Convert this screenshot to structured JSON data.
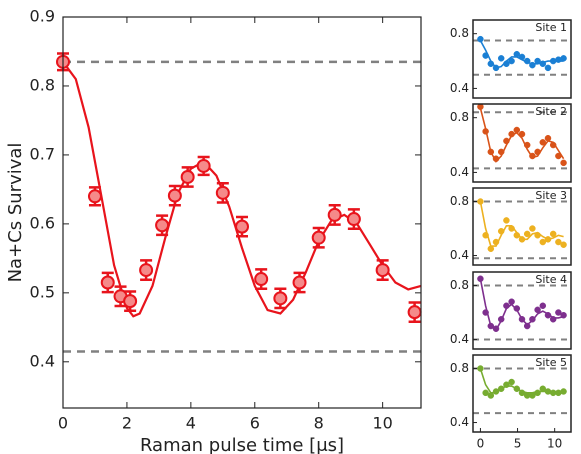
{
  "chart_data": [
    {
      "type": "errorbar",
      "xlabel": "Raman pulse time [μs]",
      "ylabel": "Na+Cs Survival",
      "color": "#e8141c",
      "marker_fill": "#f58a8a",
      "xlim": [
        0,
        11.2
      ],
      "ylim": [
        0.333,
        0.9
      ],
      "xticks": [
        0,
        2,
        4,
        6,
        8,
        10
      ],
      "yticks": [
        0.4,
        0.5,
        0.6,
        0.7,
        0.8,
        0.9
      ],
      "reference_lines": [
        0.835,
        0.415
      ],
      "x": [
        0,
        1,
        1.4,
        1.8,
        2.1,
        2.6,
        3.1,
        3.5,
        3.9,
        4.4,
        5.0,
        5.6,
        6.2,
        6.8,
        7.4,
        8.0,
        8.5,
        9.1,
        10.0,
        11.0
      ],
      "values": [
        0.835,
        0.64,
        0.515,
        0.495,
        0.488,
        0.533,
        0.598,
        0.641,
        0.668,
        0.684,
        0.645,
        0.596,
        0.52,
        0.492,
        0.515,
        0.58,
        0.613,
        0.607,
        0.533,
        0.472
      ],
      "errors": [
        0.012,
        0.013,
        0.014,
        0.014,
        0.014,
        0.014,
        0.014,
        0.014,
        0.014,
        0.013,
        0.014,
        0.014,
        0.014,
        0.014,
        0.014,
        0.014,
        0.014,
        0.014,
        0.014,
        0.014
      ],
      "fit_x": [
        0,
        0.4,
        0.8,
        1.2,
        1.6,
        2.0,
        2.2,
        2.4,
        2.8,
        3.2,
        3.6,
        4.0,
        4.4,
        4.8,
        5.2,
        5.6,
        6.0,
        6.4,
        6.8,
        7.2,
        7.6,
        8.0,
        8.4,
        8.8,
        9.2,
        9.6,
        10.0,
        10.4,
        10.8,
        11.2
      ],
      "fit_values": [
        0.835,
        0.81,
        0.74,
        0.64,
        0.54,
        0.478,
        0.466,
        0.47,
        0.51,
        0.58,
        0.645,
        0.68,
        0.69,
        0.67,
        0.625,
        0.565,
        0.51,
        0.475,
        0.47,
        0.49,
        0.53,
        0.575,
        0.605,
        0.613,
        0.6,
        0.57,
        0.54,
        0.515,
        0.505,
        0.51
      ]
    },
    {
      "type": "scatter-fit",
      "title": "Site 1",
      "color": "#1a7fd4",
      "xlim": [
        -1,
        12.2
      ],
      "ylim": [
        0.33,
        0.9
      ],
      "xticks": [],
      "yticks": [
        0.4,
        0.8
      ],
      "reference_lines": [
        0.75,
        0.5
      ],
      "x": [
        0,
        0.7,
        1.4,
        2.1,
        2.8,
        3.5,
        4.2,
        4.9,
        5.6,
        6.3,
        7,
        7.7,
        8.4,
        9.1,
        9.8,
        10.5,
        11.2
      ],
      "values": [
        0.76,
        0.64,
        0.58,
        0.55,
        0.62,
        0.58,
        0.6,
        0.65,
        0.63,
        0.6,
        0.57,
        0.6,
        0.58,
        0.55,
        0.6,
        0.61,
        0.62
      ],
      "fit_values": [
        0.75,
        0.68,
        0.6,
        0.55,
        0.56,
        0.6,
        0.63,
        0.63,
        0.61,
        0.59,
        0.58,
        0.58,
        0.59,
        0.6,
        0.6,
        0.6,
        0.6
      ]
    },
    {
      "type": "scatter-fit",
      "title": "Site 2",
      "color": "#d95319",
      "xlim": [
        -1,
        12.2
      ],
      "ylim": [
        0.33,
        0.9
      ],
      "xticks": [],
      "yticks": [
        0.4,
        0.8
      ],
      "reference_lines": [
        0.84,
        0.43
      ],
      "x": [
        0,
        0.7,
        1.4,
        2.1,
        2.8,
        3.5,
        4.2,
        4.9,
        5.6,
        6.3,
        7,
        7.7,
        8.4,
        9.1,
        9.8,
        10.5,
        11.2
      ],
      "values": [
        0.88,
        0.7,
        0.55,
        0.5,
        0.55,
        0.63,
        0.68,
        0.71,
        0.68,
        0.6,
        0.52,
        0.55,
        0.62,
        0.65,
        0.6,
        0.52,
        0.47
      ],
      "fit_values": [
        0.87,
        0.72,
        0.55,
        0.48,
        0.52,
        0.6,
        0.67,
        0.69,
        0.65,
        0.57,
        0.51,
        0.52,
        0.58,
        0.63,
        0.62,
        0.56,
        0.5
      ]
    },
    {
      "type": "scatter-fit",
      "title": "Site 3",
      "color": "#edb120",
      "xlim": [
        -1,
        12.2
      ],
      "ylim": [
        0.33,
        0.9
      ],
      "xticks": [],
      "yticks": [
        0.4,
        0.8
      ],
      "reference_lines": [
        0.8,
        0.38
      ],
      "x": [
        0,
        0.7,
        1.4,
        2.1,
        2.8,
        3.5,
        4.2,
        4.9,
        5.6,
        6.3,
        7,
        7.7,
        8.4,
        9.1,
        9.8,
        10.5,
        11.2
      ],
      "values": [
        0.8,
        0.55,
        0.45,
        0.5,
        0.58,
        0.66,
        0.6,
        0.55,
        0.52,
        0.56,
        0.6,
        0.55,
        0.5,
        0.52,
        0.56,
        0.5,
        0.48
      ],
      "fit_values": [
        0.8,
        0.6,
        0.47,
        0.47,
        0.55,
        0.62,
        0.62,
        0.57,
        0.52,
        0.52,
        0.56,
        0.57,
        0.54,
        0.52,
        0.53,
        0.55,
        0.54
      ]
    },
    {
      "type": "scatter-fit",
      "title": "Site 4",
      "color": "#7e2f8e",
      "xlim": [
        -1,
        12.2
      ],
      "ylim": [
        0.33,
        0.9
      ],
      "xticks": [],
      "yticks": [
        0.4,
        0.8
      ],
      "reference_lines": [
        0.8,
        0.4
      ],
      "x": [
        0,
        0.7,
        1.4,
        2.1,
        2.8,
        3.5,
        4.2,
        4.9,
        5.6,
        6.3,
        7,
        7.7,
        8.4,
        9.1,
        9.8,
        10.5,
        11.2
      ],
      "values": [
        0.85,
        0.6,
        0.5,
        0.48,
        0.55,
        0.65,
        0.68,
        0.63,
        0.55,
        0.5,
        0.55,
        0.62,
        0.65,
        0.58,
        0.55,
        0.6,
        0.58
      ],
      "fit_values": [
        0.85,
        0.65,
        0.5,
        0.47,
        0.54,
        0.63,
        0.66,
        0.62,
        0.55,
        0.51,
        0.54,
        0.59,
        0.61,
        0.59,
        0.56,
        0.56,
        0.57
      ]
    },
    {
      "type": "scatter-fit",
      "title": "Site 5",
      "color": "#77ac30",
      "xlim": [
        -1,
        12.2
      ],
      "ylim": [
        0.33,
        0.9
      ],
      "xticks": [
        0,
        5,
        10
      ],
      "yticks": [
        0.4,
        0.8
      ],
      "reference_lines": [
        0.8,
        0.47
      ],
      "x": [
        0,
        0.7,
        1.4,
        2.1,
        2.8,
        3.5,
        4.2,
        4.9,
        5.6,
        6.3,
        7,
        7.7,
        8.4,
        9.1,
        9.8,
        10.5,
        11.2
      ],
      "values": [
        0.8,
        0.62,
        0.6,
        0.63,
        0.65,
        0.68,
        0.7,
        0.65,
        0.62,
        0.6,
        0.6,
        0.62,
        0.65,
        0.63,
        0.62,
        0.62,
        0.63
      ],
      "fit_values": [
        0.8,
        0.68,
        0.62,
        0.62,
        0.65,
        0.67,
        0.67,
        0.65,
        0.63,
        0.62,
        0.62,
        0.63,
        0.63,
        0.63,
        0.63,
        0.63,
        0.63
      ]
    }
  ]
}
